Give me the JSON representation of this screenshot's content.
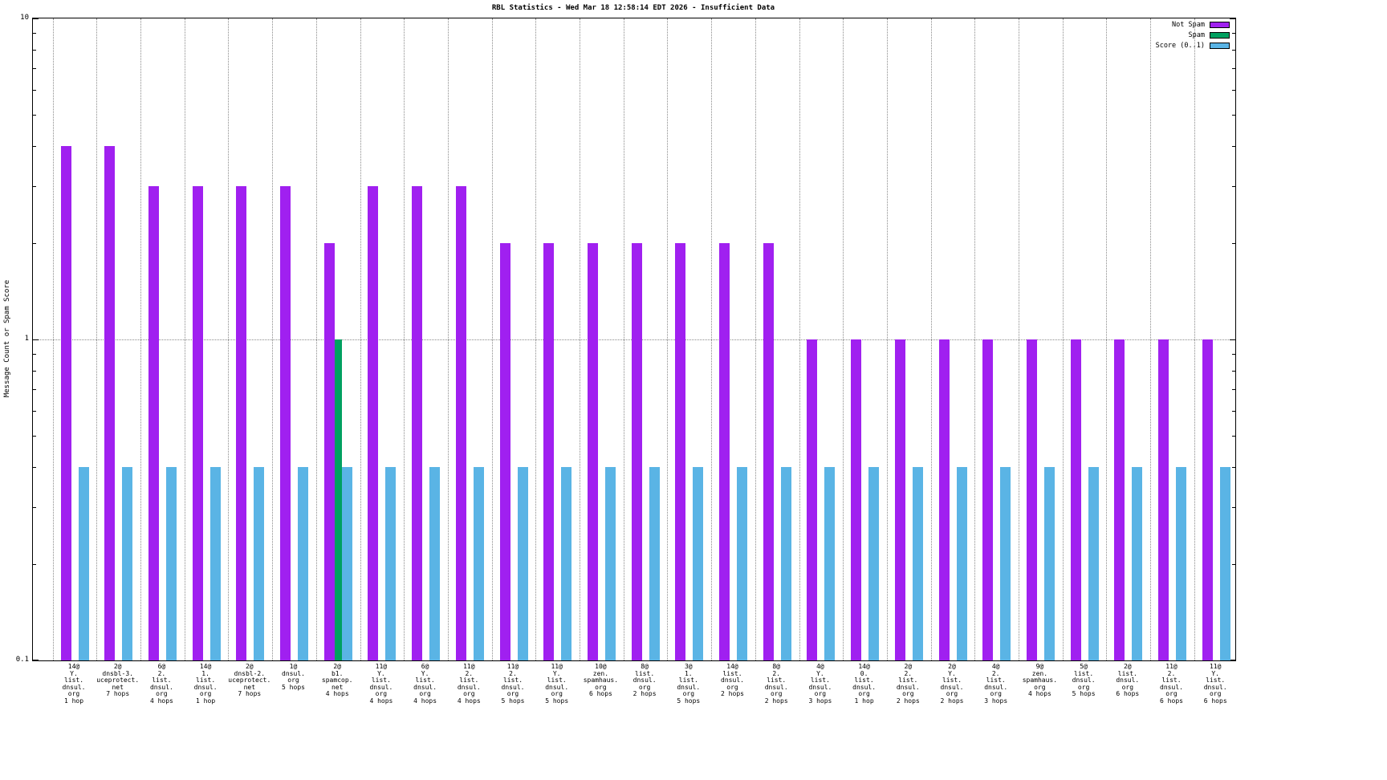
{
  "title": "RBL Statistics - Wed Mar 18 12:58:14 EDT 2026 - Insufficient Data",
  "ylabel": "Message Count or Spam Score",
  "legend": [
    {
      "label": "Not Spam",
      "color": "#a020f0"
    },
    {
      "label": "Spam",
      "color": "#00a060"
    },
    {
      "label": "Score (0..1)",
      "color": "#5ab4e5"
    }
  ],
  "axis": {
    "yscale": "log",
    "ymin": 0.1,
    "ymax": 10,
    "tick_labels": [
      "10",
      "1",
      "0.1"
    ],
    "tick_values": [
      10,
      1,
      0.1
    ]
  },
  "chart_data": {
    "type": "bar",
    "yscale": "log",
    "ylim": [
      0.1,
      10
    ],
    "grid": "dotted",
    "legend_position": "top-right",
    "title": "RBL Statistics - Wed Mar 18 12:58:14 EDT 2026 - Insufficient Data",
    "xlabel": "",
    "ylabel": "Message Count or Spam Score",
    "categories": [
      "14@\nY.\nlist.\ndnsul.\norg\n1 hop",
      "2@\ndnsbl-3.\nuceprotect.\nnet\n7 hops",
      "6@\n2.\nlist.\ndnsul.\norg\n4 hops",
      "14@\n1.\nlist.\ndnsul.\norg\n1 hop",
      "2@\ndnsbl-2.\nuceprotect.\nnet\n7 hops",
      "1@\ndnsul.\norg\n5 hops",
      "2@\nb1.\nspamcop.\nnet\n4 hops",
      "11@\nY.\nlist.\ndnsul.\norg\n4 hops",
      "6@\nY.\nlist.\ndnsul.\norg\n4 hops",
      "11@\n2.\nlist.\ndnsul.\norg\n4 hops",
      "11@\n2.\nlist.\ndnsul.\norg\n5 hops",
      "11@\nY.\nlist.\ndnsul.\norg\n5 hops",
      "10@\nzen.\nspamhaus.\norg\n6 hops",
      "8@\nlist.\ndnsul.\norg\n2 hops",
      "3@\n1.\nlist.\ndnsul.\norg\n5 hops",
      "14@\nlist.\ndnsul.\norg\n2 hops",
      "8@\n2.\nlist.\ndnsul.\norg\n2 hops",
      "4@\nY.\nlist.\ndnsul.\norg\n3 hops",
      "14@\n0.\nlist.\ndnsul.\norg\n1 hop",
      "2@\n2.\nlist.\ndnsul.\norg\n2 hops",
      "2@\nY.\nlist.\ndnsul.\norg\n2 hops",
      "4@\n2.\nlist.\ndnsul.\norg\n3 hops",
      "9@\nzen.\nspamhaus.\norg\n4 hops",
      "5@\nlist.\ndnsul.\norg\n5 hops",
      "2@\nlist.\ndnsul.\norg\n6 hops",
      "11@\n2.\nlist.\ndnsul.\norg\n6 hops",
      "11@\nY.\nlist.\ndnsul.\norg\n6 hops"
    ],
    "series": [
      {
        "name": "Not Spam",
        "color": "#a020f0",
        "values": [
          4,
          4,
          3,
          3,
          3,
          3,
          2,
          3,
          3,
          3,
          2,
          2,
          2,
          2,
          2,
          2,
          2,
          1,
          1,
          1,
          1,
          1,
          1,
          1,
          1,
          1,
          1
        ]
      },
      {
        "name": "Spam",
        "color": "#00a060",
        "values": [
          0,
          0,
          0,
          0,
          0,
          0,
          1,
          0,
          0,
          0,
          0,
          0,
          0,
          0,
          0,
          0,
          0,
          0,
          0,
          0,
          0,
          0,
          0,
          0,
          0,
          0,
          0
        ]
      },
      {
        "name": "Score (0..1)",
        "color": "#5ab4e5",
        "values": [
          0.4,
          0.4,
          0.4,
          0.4,
          0.4,
          0.4,
          0.4,
          0.4,
          0.4,
          0.4,
          0.4,
          0.4,
          0.4,
          0.4,
          0.4,
          0.4,
          0.4,
          0.4,
          0.4,
          0.4,
          0.4,
          0.4,
          0.4,
          0.4,
          0.4,
          0.4,
          0.4
        ]
      }
    ]
  }
}
